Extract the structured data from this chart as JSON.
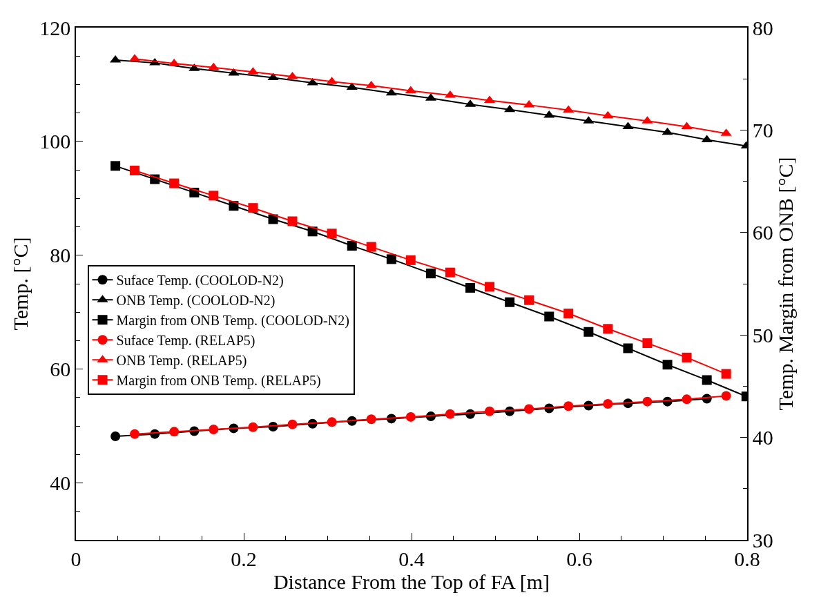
{
  "chart_data": {
    "type": "line",
    "xlabel": "Distance From the Top of FA [m]",
    "ylabel": "Temp. [°C]",
    "y2label": "Temp. Margin from ONB [°C]",
    "xlim": [
      0,
      0.8
    ],
    "xticks": [
      0,
      0.2,
      0.4,
      0.6,
      0.8
    ],
    "ylim": [
      30,
      120
    ],
    "yticks": [
      40,
      60,
      80,
      100,
      120
    ],
    "y2lim": [
      30,
      80
    ],
    "y2ticks": [
      30,
      40,
      50,
      60,
      70,
      80
    ],
    "legend": "left",
    "grid": false,
    "line_style": "solid",
    "series": [
      {
        "name": "Suface Temp. (COOLOD-N2)",
        "color": "#000000",
        "marker": "circle",
        "x": [
          0.047,
          0.094,
          0.141,
          0.188,
          0.235,
          0.282,
          0.329,
          0.376,
          0.423,
          0.47,
          0.517,
          0.564,
          0.611,
          0.658,
          0.705,
          0.752
        ],
        "values": [
          48.2,
          48.6,
          49.1,
          49.6,
          49.9,
          50.4,
          50.9,
          51.3,
          51.7,
          52.1,
          52.6,
          53.1,
          53.6,
          54.0,
          54.3,
          54.8
        ]
      },
      {
        "name": "ONB Temp. (COOLOD-N2)",
        "color": "#000000",
        "marker": "triangle",
        "x": [
          0.047,
          0.094,
          0.141,
          0.188,
          0.235,
          0.282,
          0.329,
          0.376,
          0.423,
          0.47,
          0.517,
          0.564,
          0.611,
          0.658,
          0.705,
          0.752,
          0.799
        ],
        "values": [
          114.3,
          113.8,
          112.8,
          112.0,
          111.2,
          110.3,
          109.5,
          108.5,
          107.6,
          106.5,
          105.6,
          104.6,
          103.6,
          102.6,
          101.6,
          100.3,
          99.2
        ]
      },
      {
        "name": "Margin from ONB Temp. (COOLOD-N2)",
        "color": "#000000",
        "marker": "square",
        "axis": "y2",
        "x": [
          0.047,
          0.094,
          0.141,
          0.188,
          0.235,
          0.282,
          0.329,
          0.376,
          0.423,
          0.47,
          0.517,
          0.564,
          0.611,
          0.658,
          0.705,
          0.752,
          0.799
        ],
        "values": [
          66.5,
          65.2,
          63.9,
          62.6,
          61.3,
          60.1,
          58.7,
          57.4,
          56.0,
          54.6,
          53.2,
          51.8,
          50.3,
          48.7,
          47.1,
          45.6,
          44.0
        ]
      },
      {
        "name": "Suface Temp. (RELAP5)",
        "color": "#ff0000",
        "marker": "circle",
        "x": [
          0.07,
          0.117,
          0.164,
          0.211,
          0.258,
          0.305,
          0.352,
          0.399,
          0.446,
          0.493,
          0.54,
          0.587,
          0.634,
          0.681,
          0.728,
          0.775
        ],
        "values": [
          48.6,
          49.0,
          49.4,
          49.8,
          50.3,
          50.7,
          51.2,
          51.6,
          52.1,
          52.6,
          53.0,
          53.5,
          53.9,
          54.3,
          54.7,
          55.3
        ]
      },
      {
        "name": "ONB Temp. (RELAP5)",
        "color": "#ff0000",
        "marker": "triangle",
        "x": [
          0.07,
          0.117,
          0.164,
          0.211,
          0.258,
          0.305,
          0.352,
          0.399,
          0.446,
          0.493,
          0.54,
          0.587,
          0.634,
          0.681,
          0.728,
          0.775
        ],
        "values": [
          114.5,
          113.7,
          113.0,
          112.2,
          111.4,
          110.5,
          109.8,
          108.9,
          108.1,
          107.2,
          106.4,
          105.5,
          104.5,
          103.6,
          102.6,
          101.4
        ]
      },
      {
        "name": "Margin from ONB Temp. (RELAP5)",
        "color": "#ff0000",
        "marker": "square",
        "axis": "y2",
        "x": [
          0.07,
          0.117,
          0.164,
          0.211,
          0.258,
          0.305,
          0.352,
          0.399,
          0.446,
          0.493,
          0.54,
          0.587,
          0.634,
          0.681,
          0.728,
          0.775
        ],
        "values": [
          66.05,
          64.8,
          63.6,
          62.4,
          61.1,
          59.9,
          58.6,
          57.3,
          56.1,
          54.7,
          53.4,
          52.1,
          50.6,
          49.2,
          47.8,
          46.2
        ]
      }
    ]
  }
}
